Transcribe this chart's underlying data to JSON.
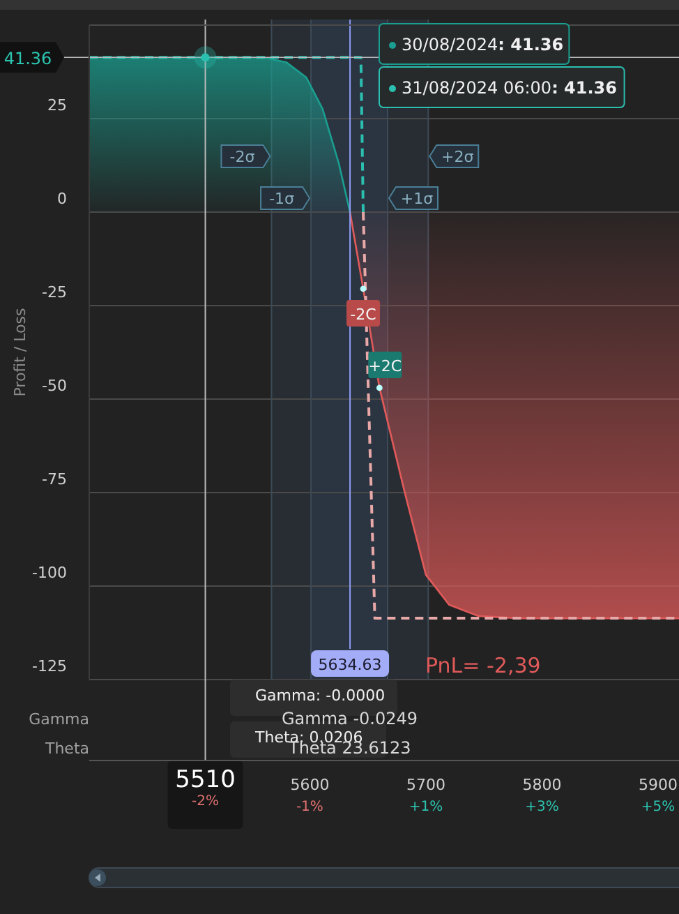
{
  "chart_data": {
    "type": "area",
    "ylabel": "Profit / Loss",
    "xlim": [
      5410,
      5918
    ],
    "ylim": [
      -125,
      50
    ],
    "xticks": [
      5600,
      5700,
      5800,
      5900
    ],
    "yticks": [
      25,
      0,
      -25,
      -50,
      -75,
      -100,
      -125
    ],
    "grid": "y",
    "legend": "top",
    "line_style": "solid",
    "series": [
      {
        "name": "30/08/2024",
        "color": "#1a9e8f",
        "x": [
          5410,
          5560,
          5580,
          5597,
          5611,
          5625,
          5634.6
        ],
        "values": [
          41.36,
          41.36,
          40,
          36,
          27.6,
          13,
          0
        ]
      },
      {
        "color": "#e05a5a",
        "x": [
          5634.6,
          5646,
          5660,
          5681,
          5700,
          5720,
          5745,
          5780,
          5918
        ],
        "values": [
          0,
          -20.5,
          -47,
          -74,
          -97,
          -105,
          -108,
          -108.6,
          -108.6
        ]
      },
      {
        "name": "31/08/2024 06:00",
        "type": "line",
        "line_style": "dashed",
        "color": "#2bbfb0",
        "x": [
          5410,
          5644,
          5646
        ],
        "values": [
          41.36,
          41.36,
          0
        ]
      },
      {
        "type": "line",
        "line_style": "dashed",
        "color": "#e8a8a8",
        "x": [
          5646,
          5656,
          5918
        ],
        "values": [
          0,
          -108.6,
          -108.6
        ]
      }
    ],
    "bands": [
      {
        "axis": "x",
        "from": 5567,
        "to": 5702,
        "color": "#272d33"
      },
      {
        "axis": "x",
        "from": 5601,
        "to": 5667,
        "color": "#2b3542"
      }
    ],
    "ref_lines": [
      {
        "axis": "x",
        "value": 5634.63,
        "label": "5634.63",
        "color": "#8f9cf5"
      },
      {
        "axis": "x",
        "value": 5510,
        "label": "5510",
        "color": "#bbbbbb"
      },
      {
        "axis": "y",
        "value": 41.36,
        "label": "41.36",
        "color": "#bbbbbb"
      },
      {
        "axis": "x",
        "value": 5567,
        "label": "-2σ",
        "color": "#3d4a57"
      },
      {
        "axis": "x",
        "value": 5601,
        "label": "-1σ",
        "color": "#3d4a57"
      },
      {
        "axis": "x",
        "value": 5667,
        "label": "+1σ",
        "color": "#3d4a57"
      },
      {
        "axis": "x",
        "value": 5702,
        "label": "+2σ",
        "color": "#3d4a57"
      }
    ],
    "annotations": [
      ": 41.36",
      ": 41.36",
      "-2%",
      "-1%",
      "+1%",
      "+3%",
      "+5%",
      {
        "text": "-2C",
        "x": 5646,
        "y": -20.5
      },
      {
        "text": "+2C",
        "x": 5660,
        "y": -47
      },
      "PnL= -2,39",
      "Gamma",
      "Theta",
      "Gamma: -0.0000",
      "Theta: 0.0206",
      "Gamma -0.0249",
      "Theta 23.6123"
    ]
  }
}
